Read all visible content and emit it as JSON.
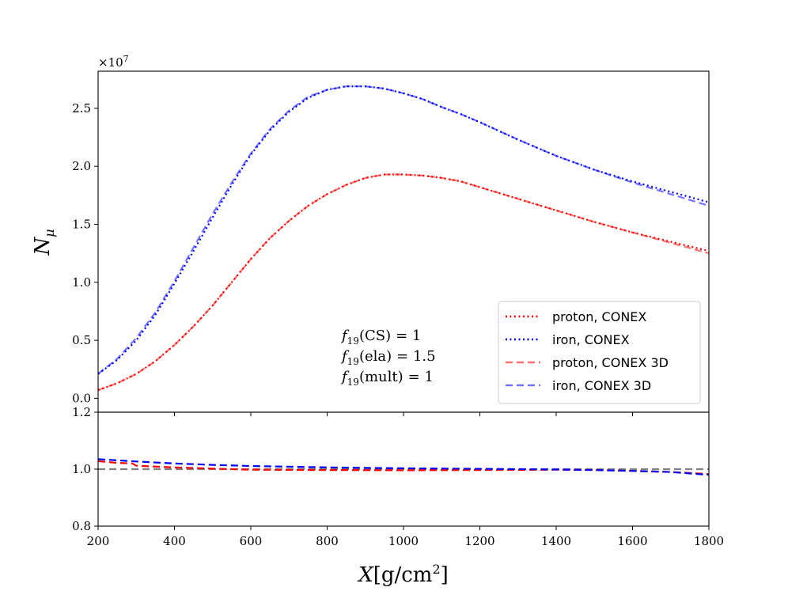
{
  "chart_data": [
    {
      "type": "line",
      "panel": "main",
      "ylabel": "N",
      "ylabel_sub": "μ",
      "y_multiplier": "×10",
      "y_multiplier_exp": "7",
      "xlim": [
        200,
        1800
      ],
      "ylim": [
        -0.12,
        2.82
      ],
      "y_ticks": [
        0.0,
        0.5,
        1.0,
        1.5,
        2.0,
        2.5
      ],
      "y_tick_labels": [
        "0.0",
        "0.5",
        "1.0",
        "1.5",
        "2.0",
        "2.5"
      ],
      "x_ticks": [
        200,
        400,
        600,
        800,
        1000,
        1200,
        1400,
        1600,
        1800
      ],
      "annotations": [
        {
          "base": "f",
          "sub": "19",
          "arg": "(CS)",
          "value": "= 1"
        },
        {
          "base": "f",
          "sub": "19",
          "arg": "(ela)",
          "value": "= 1.5"
        },
        {
          "base": "f",
          "sub": "19",
          "arg": "(mult)",
          "value": "= 1"
        }
      ],
      "legend_position": "lower-right",
      "series": [
        {
          "name": "proton, CONEX",
          "color": "#ff0000",
          "style": "dotted",
          "opacity": 1,
          "x": [
            200,
            250,
            300,
            350,
            400,
            450,
            500,
            550,
            600,
            650,
            700,
            750,
            800,
            850,
            900,
            950,
            1000,
            1050,
            1100,
            1150,
            1200,
            1300,
            1400,
            1500,
            1600,
            1700,
            1800
          ],
          "y": [
            0.07,
            0.13,
            0.21,
            0.32,
            0.46,
            0.62,
            0.8,
            1.0,
            1.2,
            1.38,
            1.53,
            1.66,
            1.76,
            1.84,
            1.9,
            1.93,
            1.93,
            1.92,
            1.9,
            1.87,
            1.82,
            1.72,
            1.62,
            1.52,
            1.43,
            1.35,
            1.27
          ]
        },
        {
          "name": "iron, CONEX",
          "color": "#0000ff",
          "style": "dotted",
          "opacity": 1,
          "x": [
            200,
            250,
            300,
            350,
            400,
            450,
            500,
            550,
            600,
            650,
            700,
            750,
            800,
            850,
            900,
            950,
            1000,
            1050,
            1100,
            1150,
            1200,
            1300,
            1400,
            1500,
            1600,
            1700,
            1800
          ],
          "y": [
            0.21,
            0.33,
            0.5,
            0.72,
            0.99,
            1.27,
            1.56,
            1.84,
            2.1,
            2.31,
            2.47,
            2.59,
            2.66,
            2.69,
            2.69,
            2.67,
            2.63,
            2.58,
            2.51,
            2.45,
            2.38,
            2.23,
            2.09,
            1.97,
            1.87,
            1.78,
            1.69
          ]
        },
        {
          "name": "proton, CONEX 3D",
          "color": "#ff0000",
          "style": "dashed",
          "opacity": 0.55,
          "x": [
            200,
            250,
            300,
            350,
            400,
            450,
            500,
            550,
            600,
            650,
            700,
            750,
            800,
            850,
            900,
            950,
            1000,
            1050,
            1100,
            1150,
            1200,
            1300,
            1400,
            1500,
            1600,
            1700,
            1800
          ],
          "y": [
            0.07,
            0.13,
            0.21,
            0.32,
            0.46,
            0.62,
            0.8,
            1.0,
            1.2,
            1.38,
            1.53,
            1.66,
            1.76,
            1.84,
            1.9,
            1.93,
            1.93,
            1.92,
            1.9,
            1.87,
            1.82,
            1.72,
            1.62,
            1.52,
            1.43,
            1.34,
            1.25
          ]
        },
        {
          "name": "iron, CONEX 3D",
          "color": "#0000ff",
          "style": "dashed",
          "opacity": 0.55,
          "x": [
            200,
            250,
            300,
            350,
            400,
            450,
            500,
            550,
            600,
            650,
            700,
            750,
            800,
            850,
            900,
            950,
            1000,
            1050,
            1100,
            1150,
            1200,
            1300,
            1400,
            1500,
            1600,
            1700,
            1800
          ],
          "y": [
            0.21,
            0.34,
            0.52,
            0.74,
            1.01,
            1.3,
            1.59,
            1.86,
            2.11,
            2.32,
            2.48,
            2.6,
            2.66,
            2.69,
            2.69,
            2.67,
            2.63,
            2.58,
            2.51,
            2.45,
            2.38,
            2.23,
            2.09,
            1.97,
            1.86,
            1.76,
            1.66
          ]
        }
      ]
    },
    {
      "type": "line",
      "panel": "ratio",
      "xlabel": "X",
      "xlabel_unit": "[g/cm",
      "xlabel_unit_exp": "2",
      "xlabel_unit_end": "]",
      "xlim": [
        200,
        1800
      ],
      "ylim": [
        0.8,
        1.2
      ],
      "y_ticks": [
        0.8,
        1.0,
        1.2
      ],
      "y_tick_labels": [
        "0.8",
        "1.0",
        "1.2"
      ],
      "x_ticks": [
        200,
        400,
        600,
        800,
        1000,
        1200,
        1400,
        1600,
        1800
      ],
      "x_tick_labels": [
        "200",
        "400",
        "600",
        "800",
        "1000",
        "1200",
        "1400",
        "1600",
        "1800"
      ],
      "reference_line": {
        "y": 1.0,
        "color": "#808080",
        "style": "dashed"
      },
      "series": [
        {
          "color": "#ff0000",
          "style": "dashed",
          "opacity": 1,
          "x": [
            200,
            250,
            290,
            300,
            400,
            500,
            600,
            800,
            1000,
            1200,
            1400,
            1500,
            1600,
            1700,
            1800
          ],
          "y": [
            1.028,
            1.022,
            1.02,
            1.012,
            1.006,
            1.002,
            0.998,
            0.997,
            0.996,
            0.997,
            0.998,
            0.997,
            0.994,
            0.99,
            0.983
          ]
        },
        {
          "color": "#0000ff",
          "style": "dashed",
          "opacity": 1,
          "x": [
            200,
            300,
            400,
            500,
            600,
            800,
            1000,
            1200,
            1400,
            1500,
            1600,
            1700,
            1800
          ],
          "y": [
            1.035,
            1.027,
            1.02,
            1.015,
            1.011,
            1.006,
            1.003,
            1.001,
            0.999,
            0.997,
            0.994,
            0.99,
            0.98
          ]
        }
      ]
    }
  ]
}
